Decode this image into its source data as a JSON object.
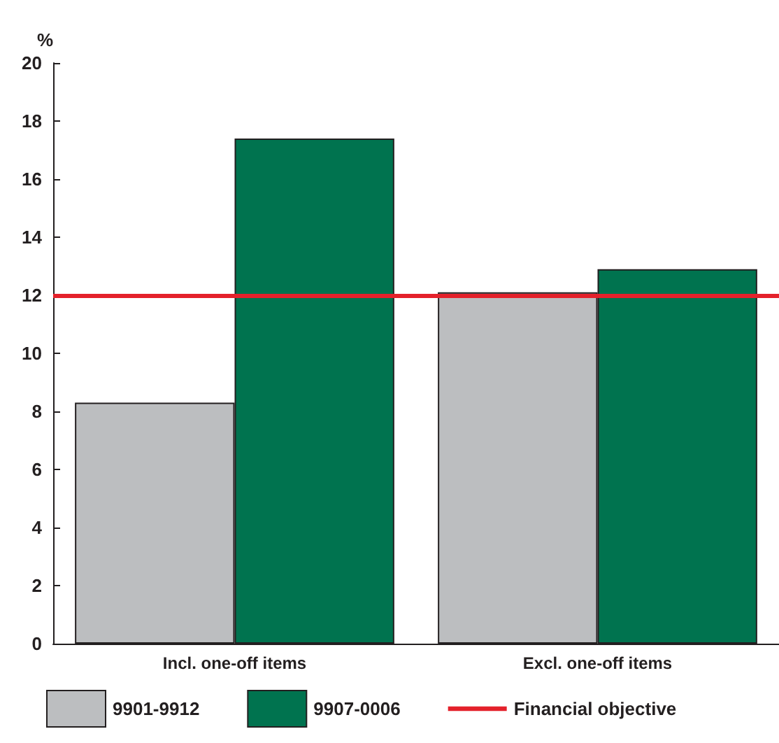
{
  "chart_data": {
    "type": "bar",
    "ylabel": "%",
    "categories": [
      "Incl. one-off items",
      "Excl. one-off items"
    ],
    "series": [
      {
        "name": "9901-9912",
        "color": "#bcbec0",
        "values": [
          8.3,
          12.1
        ]
      },
      {
        "name": "9907-0006",
        "color": "#00734f",
        "values": [
          17.4,
          12.9
        ]
      }
    ],
    "ylim": [
      0,
      20
    ],
    "yticks": [
      0,
      2,
      4,
      6,
      8,
      10,
      12,
      14,
      16,
      18,
      20
    ],
    "ref_lines": [
      {
        "axis": "y",
        "value": 12,
        "label": "Financial objective",
        "color": "#e4212b",
        "line_style": "solid"
      }
    ],
    "grid": false,
    "legend": "bottom"
  }
}
